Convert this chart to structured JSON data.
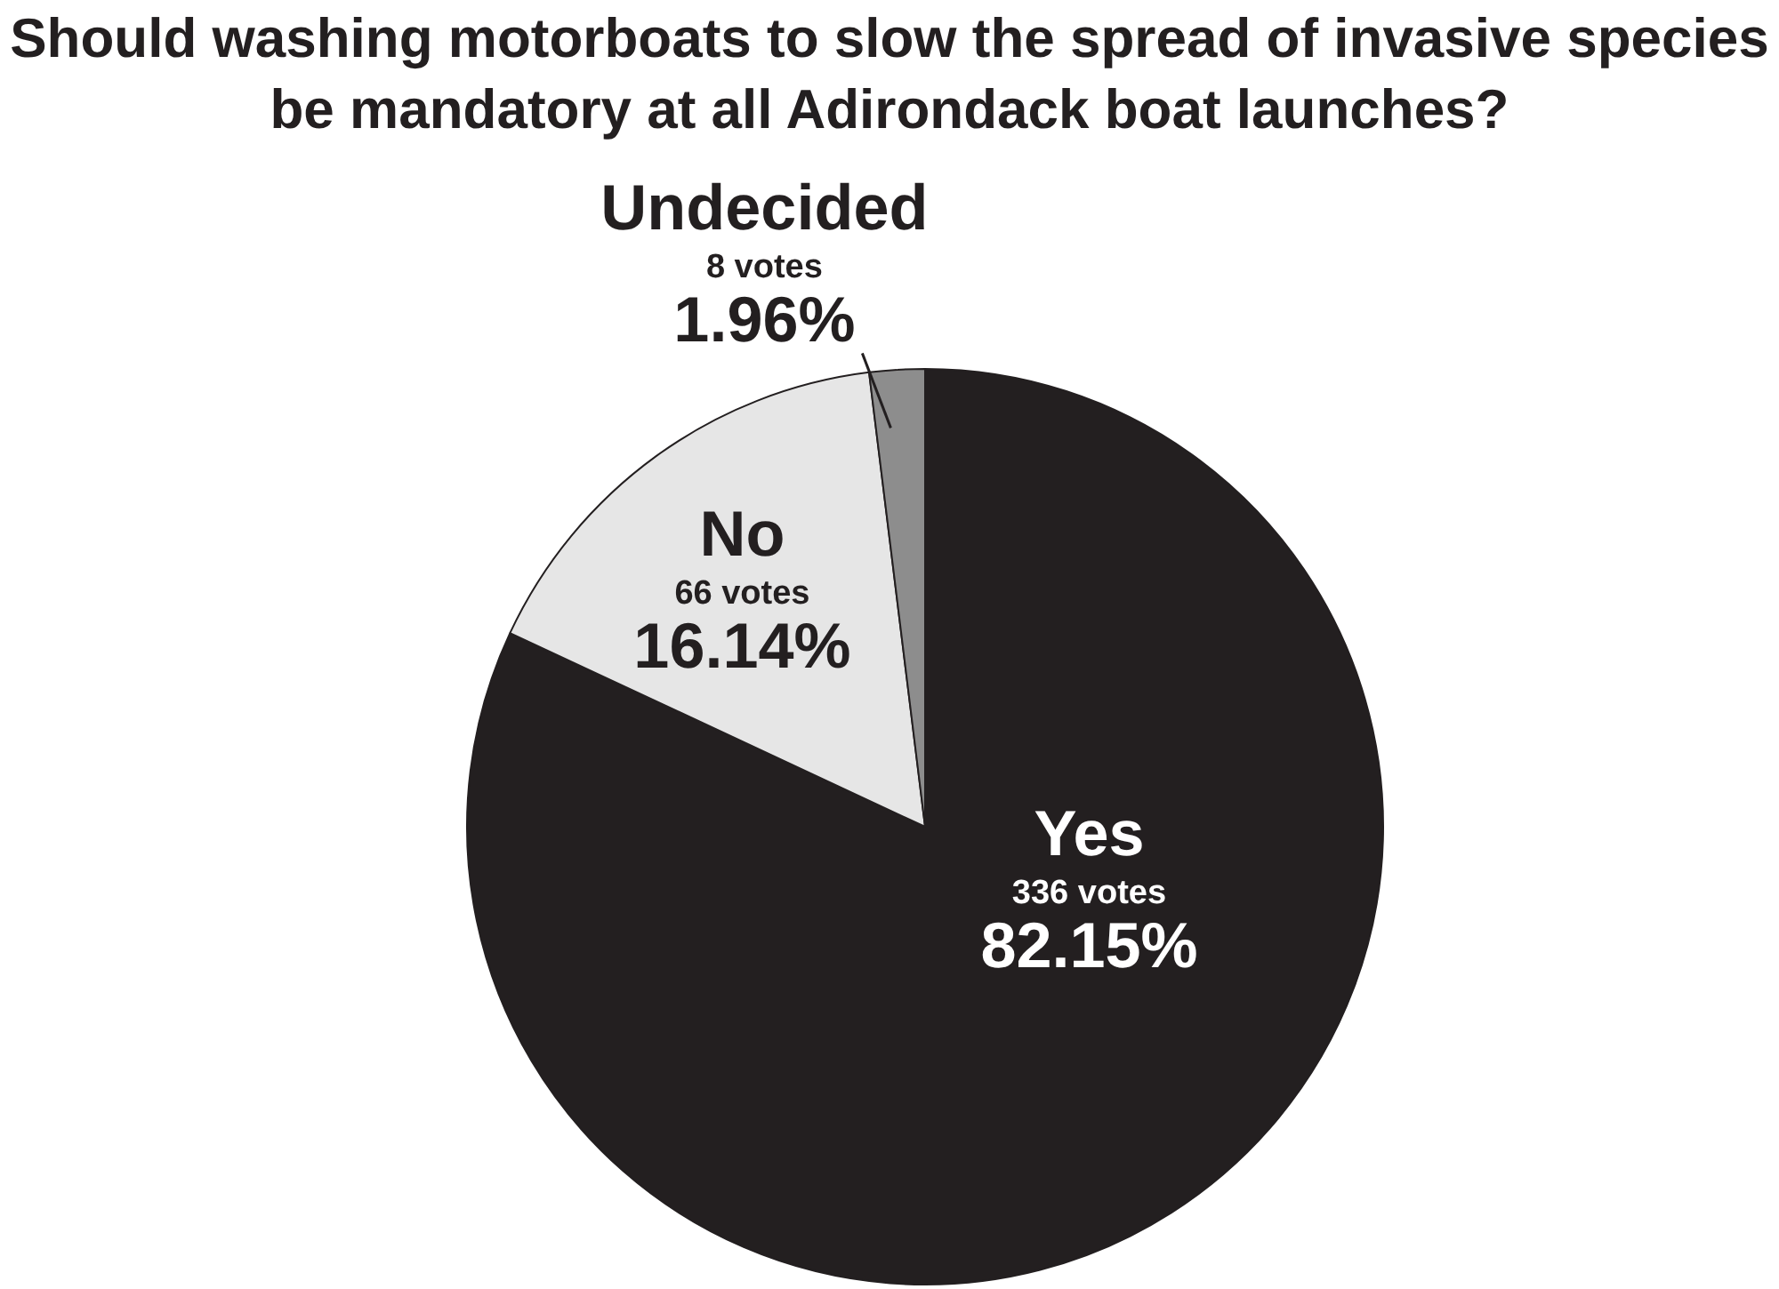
{
  "chart_data": {
    "type": "pie",
    "title": "Should washing motorboats to slow the spread of invasive species be mandatory at all Adirondack boat launches?",
    "categories": [
      "Yes",
      "No",
      "Undecided"
    ],
    "values": [
      336,
      66,
      8
    ],
    "colors": [
      "#231f20",
      "#e6e6e6",
      "#8d8d8d"
    ],
    "value_labels": [
      "336 votes",
      "66 votes",
      "8 votes"
    ],
    "annotations": [
      {
        "text": "82.15%",
        "x": "Yes"
      },
      {
        "text": "16.14%",
        "x": "No"
      },
      {
        "text": "1.96%",
        "x": "Undecided"
      }
    ],
    "legend": false
  }
}
